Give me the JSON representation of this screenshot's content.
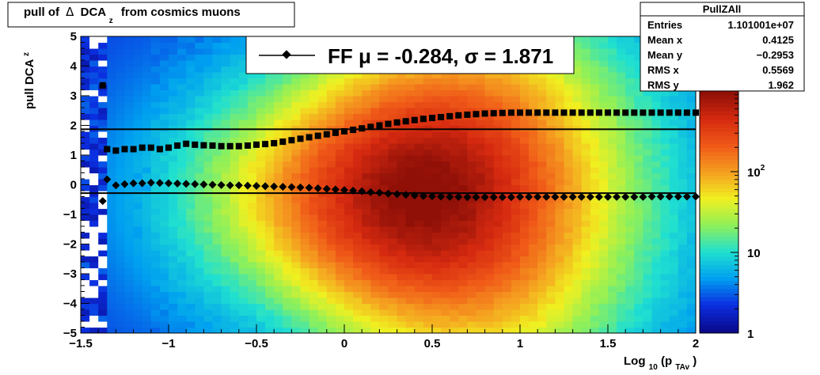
{
  "title": {
    "pre": "pull of",
    "delta": "Δ",
    "main": "DCA",
    "sub": "z",
    "post": "from cosmics muons"
  },
  "ylabel": {
    "main": "pull DCA",
    "sub": "z"
  },
  "xlabel": {
    "pre": "Log",
    "sub1": "10",
    "mid": "(p",
    "sub2": "TAv",
    "post": ")"
  },
  "legend": {
    "entry": "FF μ = -0.284, σ =   1.871"
  },
  "stats": {
    "name": "PullZAll",
    "rows": [
      {
        "label": "Entries",
        "value": "1.101001e+07"
      },
      {
        "label": "Mean x",
        "value": "0.4125"
      },
      {
        "label": "Mean y",
        "value": "−0.2953"
      },
      {
        "label": "RMS x",
        "value": "0.5569"
      },
      {
        "label": "RMS y",
        "value": "1.962"
      }
    ]
  },
  "colors": {
    "marker": "#000000",
    "palette": [
      "#0a0a8c",
      "#0b2ee0",
      "#00a0f0",
      "#20e0d0",
      "#8ef05a",
      "#f0f020",
      "#f5a020",
      "#f05a18",
      "#d62a10",
      "#901008"
    ]
  },
  "chart_data": {
    "type": "heatmap",
    "x_range": [
      -1.5,
      2
    ],
    "y_range": [
      -5,
      5
    ],
    "x_ticks": [
      "−1.5",
      "−1",
      "−0.5",
      "0",
      "0.5",
      "1",
      "1.5",
      "2"
    ],
    "x_tick_values": [
      -1.5,
      -1,
      -0.5,
      0,
      0.5,
      1,
      1.5,
      2
    ],
    "y_ticks": [
      "−5",
      "−4",
      "−3",
      "−2",
      "−1",
      "0",
      "1",
      "2",
      "3",
      "4",
      "5"
    ],
    "y_tick_values": [
      -5,
      -4,
      -3,
      -2,
      -1,
      0,
      1,
      2,
      3,
      4,
      5
    ],
    "z_scale": "log",
    "z_range": [
      1,
      1000
    ],
    "z_ticks": [
      {
        "label": "1",
        "value": 1
      },
      {
        "label": "10",
        "value": 10
      },
      {
        "label": "10",
        "sup": "2",
        "value": 100
      }
    ],
    "mean_line": -0.284,
    "sigma_line": 1.871,
    "mean_points_x": [
      -1.375,
      -1.35,
      -1.3,
      -1.25,
      -1.2,
      -1.15,
      -1.1,
      -1.05,
      -1.0,
      -0.95,
      -0.9,
      -0.85,
      -0.8,
      -0.75,
      -0.7,
      -0.65,
      -0.6,
      -0.55,
      -0.5,
      -0.45,
      -0.4,
      -0.35,
      -0.3,
      -0.25,
      -0.2,
      -0.15,
      -0.1,
      -0.05,
      0.0,
      0.05,
      0.1,
      0.15,
      0.2,
      0.25,
      0.3,
      0.35,
      0.4,
      0.45,
      0.5,
      0.55,
      0.6,
      0.65,
      0.7,
      0.75,
      0.8,
      0.85,
      0.9,
      0.95,
      1.0,
      1.05,
      1.1,
      1.15,
      1.2,
      1.25,
      1.3,
      1.35,
      1.4,
      1.45,
      1.5,
      1.55,
      1.6,
      1.65,
      1.7,
      1.75,
      1.8,
      1.85,
      1.9,
      1.95,
      2.0
    ],
    "mean_points_y": [
      -0.55,
      0.18,
      -0.02,
      0.02,
      0.05,
      0.05,
      0.07,
      0.06,
      0.05,
      0.04,
      0.03,
      0.02,
      0.01,
      0.0,
      -0.01,
      -0.02,
      -0.02,
      -0.03,
      -0.04,
      -0.05,
      -0.06,
      -0.07,
      -0.08,
      -0.09,
      -0.1,
      -0.12,
      -0.14,
      -0.16,
      -0.18,
      -0.2,
      -0.22,
      -0.25,
      -0.27,
      -0.3,
      -0.32,
      -0.34,
      -0.36,
      -0.38,
      -0.39,
      -0.4,
      -0.41,
      -0.41,
      -0.42,
      -0.42,
      -0.42,
      -0.42,
      -0.42,
      -0.42,
      -0.41,
      -0.41,
      -0.41,
      -0.41,
      -0.41,
      -0.41,
      -0.41,
      -0.41,
      -0.41,
      -0.41,
      -0.41,
      -0.41,
      -0.41,
      -0.41,
      -0.41,
      -0.4,
      -0.4,
      -0.4,
      -0.4,
      -0.4,
      -0.4
    ],
    "rms_points_x": [
      -1.375,
      -1.35,
      -1.3,
      -1.25,
      -1.2,
      -1.15,
      -1.1,
      -1.05,
      -1.0,
      -0.95,
      -0.9,
      -0.85,
      -0.8,
      -0.75,
      -0.7,
      -0.65,
      -0.6,
      -0.55,
      -0.5,
      -0.45,
      -0.4,
      -0.35,
      -0.3,
      -0.25,
      -0.2,
      -0.15,
      -0.1,
      -0.05,
      0.0,
      0.05,
      0.1,
      0.15,
      0.2,
      0.25,
      0.3,
      0.35,
      0.4,
      0.45,
      0.5,
      0.55,
      0.6,
      0.65,
      0.7,
      0.75,
      0.8,
      0.85,
      0.9,
      0.95,
      1.0,
      1.05,
      1.1,
      1.15,
      1.2,
      1.25,
      1.3,
      1.35,
      1.4,
      1.45,
      1.5,
      1.55,
      1.6,
      1.65,
      1.7,
      1.75,
      1.8,
      1.85,
      1.9,
      1.95,
      2.0
    ],
    "rms_points_y": [
      3.35,
      1.2,
      1.15,
      1.2,
      1.2,
      1.25,
      1.25,
      1.2,
      1.25,
      1.32,
      1.38,
      1.35,
      1.33,
      1.32,
      1.3,
      1.3,
      1.3,
      1.32,
      1.35,
      1.37,
      1.4,
      1.45,
      1.5,
      1.55,
      1.6,
      1.65,
      1.7,
      1.75,
      1.8,
      1.85,
      1.9,
      1.95,
      2.0,
      2.05,
      2.1,
      2.14,
      2.18,
      2.22,
      2.25,
      2.28,
      2.31,
      2.34,
      2.36,
      2.38,
      2.4,
      2.41,
      2.42,
      2.43,
      2.43,
      2.43,
      2.43,
      2.43,
      2.43,
      2.43,
      2.43,
      2.43,
      2.43,
      2.43,
      2.43,
      2.43,
      2.43,
      2.43,
      2.43,
      2.43,
      2.43,
      2.43,
      2.43,
      2.43,
      2.43
    ]
  }
}
